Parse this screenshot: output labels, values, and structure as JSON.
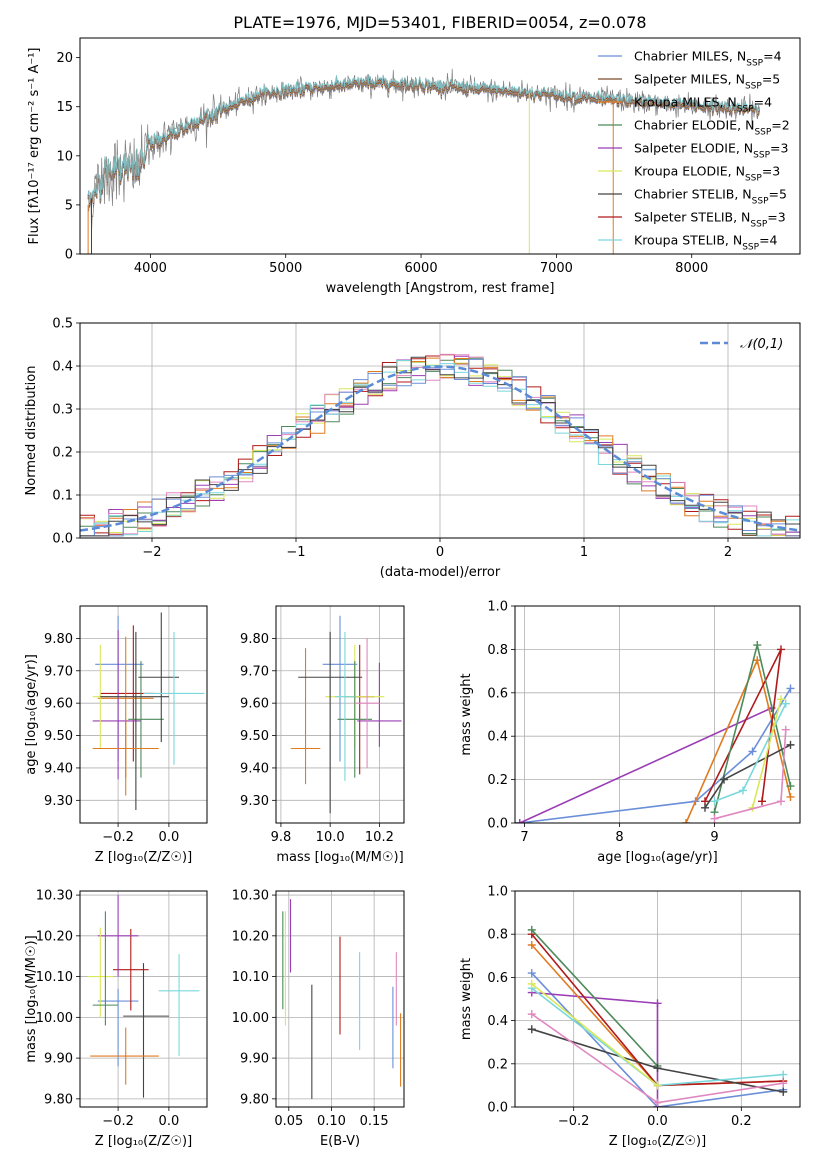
{
  "title": "PLATE=1976, MJD=53401, FIBERID=0054, z=0.078",
  "chart_data": [
    {
      "id": "spectrum",
      "type": "line",
      "xlabel": "wavelength [Angstrom, rest frame]",
      "ylabel": "Flux [fλ10⁻¹⁷ erg cm⁻² s⁻¹ A⁻¹]",
      "xlim": [
        3480,
        8800
      ],
      "ylim": [
        0,
        22
      ],
      "xticks": [
        4000,
        5000,
        6000,
        7000,
        8000
      ],
      "yticks": [
        0,
        5,
        10,
        15,
        20
      ],
      "grid": false,
      "legend_position": "right",
      "continuum_knots": {
        "x": [
          3540,
          3650,
          3800,
          3900,
          4000,
          4200,
          4500,
          4800,
          5000,
          5300,
          5600,
          6000,
          6400,
          6800,
          7200,
          7600,
          8000,
          8400,
          8500
        ],
        "y": [
          5,
          8,
          9,
          8.5,
          11,
          12.5,
          14.5,
          16.2,
          16.6,
          17,
          17.4,
          17.2,
          16.8,
          16.4,
          15.9,
          15.5,
          15.1,
          14.8,
          14.6
        ]
      },
      "series": [
        {
          "name": "Chabrier MILES, N_SSP=4",
          "color": "#6a8fd8"
        },
        {
          "name": "Salpeter MILES, N_SSP=5",
          "color": "#7b4a2a"
        },
        {
          "name": "Kroupa MILES, N_SSP=4",
          "color": "#e07b20"
        },
        {
          "name": "Chabrier ELODIE, N_SSP=2",
          "color": "#4e8a5a"
        },
        {
          "name": "Salpeter ELODIE, N_SSP=3",
          "color": "#9b3db5"
        },
        {
          "name": "Kroupa ELODIE, N_SSP=3",
          "color": "#d9e85a"
        },
        {
          "name": "Chabrier STELIB, N_SSP=5",
          "color": "#444444"
        },
        {
          "name": "Salpeter STELIB, N_SSP=3",
          "color": "#b01a1a"
        },
        {
          "name": "Kroupa STELIB, N_SSP=4",
          "color": "#7ad8dc"
        }
      ]
    },
    {
      "id": "residuals",
      "type": "histogram",
      "xlabel": "(data-model)/error",
      "ylabel": "Normed distribution",
      "xlim": [
        -2.5,
        2.5
      ],
      "ylim": [
        0,
        0.5
      ],
      "xticks": [
        -2,
        -1,
        0,
        1,
        2
      ],
      "yticks": [
        0,
        0.1,
        0.2,
        0.3,
        0.4,
        0.5
      ],
      "grid": true,
      "bin_width": 0.1,
      "legend": "𝒩(0,1)",
      "legend_position": "top-right",
      "normal_curve_color": "#5b8bd6",
      "hist_colors": [
        "#4e8a5a",
        "#b01a1a",
        "#9b3db5",
        "#d9e85a",
        "#e07b20",
        "#e088c0",
        "#7ad8dc",
        "#6a8fd8",
        "#444444"
      ]
    },
    {
      "id": "age-vs-Z",
      "type": "errorbar",
      "xlabel": "Z [log₁₀(Z/Z☉)]",
      "ylabel": "age  [log₁₀(age/yr)]",
      "xlim": [
        -0.35,
        0.15
      ],
      "ylim": [
        9.23,
        9.9
      ],
      "xticks": [
        -0.2,
        0.0
      ],
      "yticks": [
        9.3,
        9.4,
        9.5,
        9.6,
        9.7,
        9.8
      ],
      "grid": true,
      "points": [
        {
          "x": -0.2,
          "xerr": [
            0.09,
            0.1
          ],
          "y": 9.72,
          "yerr": [
            0.3,
            0.15
          ],
          "color": "#6a8fd8"
        },
        {
          "x": -0.14,
          "xerr": [
            0.13,
            0.08
          ],
          "y": 9.63,
          "yerr": [
            0.21,
            0.21
          ],
          "color": "#b01a1a"
        },
        {
          "x": -0.17,
          "xerr": [
            0.11,
            0.11
          ],
          "y": 9.615,
          "yerr": [
            0.3,
            0.19
          ],
          "color": "#e07b20"
        },
        {
          "x": -0.2,
          "xerr": [
            0.1,
            0.09
          ],
          "y": 9.545,
          "yerr": [
            0.18,
            0.28
          ],
          "color": "#9b3db5"
        },
        {
          "x": -0.27,
          "xerr": [
            0.03,
            0.03
          ],
          "y": 9.62,
          "yerr": [
            0.16,
            0.16
          ],
          "color": "#d9e85a"
        },
        {
          "x": -0.11,
          "xerr": [
            0.05,
            0.09
          ],
          "y": 9.55,
          "yerr": [
            0.18,
            0.18
          ],
          "color": "#4e8a5a"
        },
        {
          "x": -0.13,
          "xerr": [
            0.14,
            0.13
          ],
          "y": 9.62,
          "yerr": [
            0.35,
            0.2
          ],
          "color": "#444444"
        },
        {
          "x": -0.03,
          "xerr": [
            0.09,
            0.07
          ],
          "y": 9.68,
          "yerr": [
            0.2,
            0.2
          ],
          "color": "#444444"
        },
        {
          "x": 0.02,
          "xerr": [
            0.12,
            0.12
          ],
          "y": 9.63,
          "yerr": [
            0.22,
            0.19
          ],
          "color": "#7ad8dc"
        },
        {
          "x": -0.17,
          "xerr": [
            0.13,
            0.13
          ],
          "y": 9.46,
          "yerr": [
            0.09,
            0.09
          ],
          "color": "#e07b20"
        }
      ]
    },
    {
      "id": "age-vs-mass",
      "type": "errorbar",
      "xlabel": "mass [log₁₀(M/M☉)]",
      "ylabel": "",
      "xlim": [
        9.78,
        10.3
      ],
      "ylim": [
        9.23,
        9.9
      ],
      "xticks": [
        9.8,
        10.0,
        10.2
      ],
      "yticks": [
        9.3,
        9.4,
        9.5,
        9.6,
        9.7,
        9.8
      ],
      "grid": true,
      "points": [
        {
          "x": 10.04,
          "xerr": [
            0.07,
            0.07
          ],
          "y": 9.72,
          "yerr": [
            0.3,
            0.15
          ],
          "color": "#6a8fd8"
        },
        {
          "x": 10.12,
          "xerr": [
            0.06,
            0.06
          ],
          "y": 9.62,
          "yerr": [
            0.24,
            0.16
          ],
          "color": "#b01a1a"
        },
        {
          "x": 9.9,
          "xerr": [
            0.06,
            0.06
          ],
          "y": 9.46,
          "yerr": [
            0.11,
            0.31
          ],
          "color": "#e07b20"
        },
        {
          "x": 10.2,
          "xerr": [
            0.09,
            0.09
          ],
          "y": 9.545,
          "yerr": [
            0.08,
            0.18
          ],
          "color": "#9b3db5"
        },
        {
          "x": 10.1,
          "xerr": [
            0.12,
            0.12
          ],
          "y": 9.62,
          "yerr": [
            0.16,
            0.16
          ],
          "color": "#d9e85a"
        },
        {
          "x": 10.1,
          "xerr": [
            0.07,
            0.07
          ],
          "y": 9.55,
          "yerr": [
            0.18,
            0.18
          ],
          "color": "#4e8a5a"
        },
        {
          "x": 10.0,
          "xerr": [
            0.13,
            0.13
          ],
          "y": 9.68,
          "yerr": [
            0.42,
            0.14
          ],
          "color": "#444444"
        },
        {
          "x": 10.06,
          "xerr": [
            0.04,
            0.04
          ],
          "y": 9.62,
          "yerr": [
            0.26,
            0.2
          ],
          "color": "#7ad8dc"
        },
        {
          "x": 10.15,
          "xerr": [
            0.05,
            0.05
          ],
          "y": 9.6,
          "yerr": [
            0.2,
            0.2
          ],
          "color": "#e088c0"
        }
      ]
    },
    {
      "id": "mass-weight-vs-age",
      "type": "line",
      "xlabel": "age  [log₁₀(age/yr)]",
      "ylabel": "mass weight",
      "xlim": [
        6.9,
        9.9
      ],
      "ylim": [
        0,
        1.0
      ],
      "xticks": [
        7,
        8,
        9
      ],
      "yticks": [
        0.0,
        0.2,
        0.4,
        0.6,
        0.8,
        1.0
      ],
      "grid": true,
      "series": [
        {
          "color": "#6a8fd8",
          "x": [
            6.95,
            8.8,
            9.4,
            9.8
          ],
          "y": [
            0.0,
            0.1,
            0.33,
            0.62
          ]
        },
        {
          "color": "#9b3db5",
          "x": [
            6.95,
            9.6
          ],
          "y": [
            0.0,
            0.53
          ]
        },
        {
          "color": "#e07b20",
          "x": [
            8.7,
            9.45,
            9.8
          ],
          "y": [
            0.0,
            0.75,
            0.12
          ]
        },
        {
          "color": "#b01a1a",
          "x": [
            8.9,
            9.7,
            9.5
          ],
          "y": [
            0.1,
            0.8,
            0.1
          ]
        },
        {
          "color": "#4e8a5a",
          "x": [
            9.0,
            9.45,
            9.8
          ],
          "y": [
            0.05,
            0.82,
            0.17
          ]
        },
        {
          "color": "#444444",
          "x": [
            8.9,
            9.1,
            9.8
          ],
          "y": [
            0.07,
            0.2,
            0.36
          ]
        },
        {
          "color": "#7ad8dc",
          "x": [
            9.0,
            9.3,
            9.75
          ],
          "y": [
            0.1,
            0.15,
            0.55
          ]
        },
        {
          "color": "#d9e85a",
          "x": [
            9.4,
            9.7
          ],
          "y": [
            0.07,
            0.57
          ]
        },
        {
          "color": "#e088c0",
          "x": [
            9.0,
            9.7,
            9.75
          ],
          "y": [
            0.02,
            0.1,
            0.43
          ]
        }
      ]
    },
    {
      "id": "mass-vs-Z",
      "type": "errorbar",
      "xlabel": "Z [log₁₀(Z/Z☉)]",
      "ylabel": "mass [log₁₀(M/M☉)]",
      "xlim": [
        -0.35,
        0.15
      ],
      "ylim": [
        9.78,
        10.31
      ],
      "xticks": [
        -0.2,
        0.0
      ],
      "yticks": [
        9.8,
        9.9,
        10.0,
        10.1,
        10.2,
        10.3
      ],
      "grid": true,
      "points": [
        {
          "x": -0.2,
          "xerr": [
            0.08,
            0.08
          ],
          "y": 10.04,
          "yerr": [
            0.16,
            0.03
          ],
          "color": "#6a8fd8"
        },
        {
          "x": -0.15,
          "xerr": [
            0.07,
            0.07
          ],
          "y": 10.117,
          "yerr": [
            0.1,
            0.1
          ],
          "color": "#b01a1a"
        },
        {
          "x": -0.2,
          "xerr": [
            0.08,
            0.08
          ],
          "y": 10.2,
          "yerr": [
            0.1,
            0.1
          ],
          "color": "#9b3db5"
        },
        {
          "x": -0.27,
          "xerr": [
            0.05,
            0.05
          ],
          "y": 10.1,
          "yerr": [
            0.1,
            0.12
          ],
          "color": "#d9e85a"
        },
        {
          "x": -0.25,
          "xerr": [
            0.05,
            0.05
          ],
          "y": 10.03,
          "yerr": [
            0.05,
            0.23
          ],
          "color": "#4e8a5a"
        },
        {
          "x": -0.1,
          "xerr": [
            0.08,
            0.1
          ],
          "y": 10.003,
          "yerr": [
            0.2,
            0.13
          ],
          "color": "#444444"
        },
        {
          "x": 0.04,
          "xerr": [
            0.08,
            0.08
          ],
          "y": 10.065,
          "yerr": [
            0.16,
            0.09
          ],
          "color": "#7ad8dc"
        },
        {
          "x": -0.17,
          "xerr": [
            0.14,
            0.13
          ],
          "y": 9.905,
          "yerr": [
            0.07,
            0.07
          ],
          "color": "#e07b20"
        }
      ]
    },
    {
      "id": "mass-vs-ebv",
      "type": "errorbar",
      "xlabel": "E(B-V)",
      "ylabel": "",
      "xlim": [
        0.035,
        0.185
      ],
      "ylim": [
        9.78,
        10.31
      ],
      "xticks": [
        0.05,
        0.1,
        0.15
      ],
      "yticks": [
        9.8,
        9.9,
        10.0,
        10.1,
        10.2,
        10.3
      ],
      "grid": true,
      "points": [
        {
          "x": 0.046,
          "y": 10.11,
          "yerr": [
            0.13,
            0.15
          ],
          "color": "#d9e85a"
        },
        {
          "x": 0.052,
          "y": 10.2,
          "yerr": [
            0.09,
            0.09
          ],
          "color": "#9b3db5"
        },
        {
          "x": 0.043,
          "y": 10.1,
          "yerr": [
            0.08,
            0.16
          ],
          "color": "#4e8a5a"
        },
        {
          "x": 0.077,
          "y": 9.94,
          "yerr": [
            0.14,
            0.14
          ],
          "color": "#444444"
        },
        {
          "x": 0.11,
          "y": 10.078,
          "yerr": [
            0.12,
            0.12
          ],
          "color": "#b01a1a"
        },
        {
          "x": 0.133,
          "y": 10.04,
          "yerr": [
            0.12,
            0.12
          ],
          "color": "#7ad8dc"
        },
        {
          "x": 0.172,
          "y": 9.975,
          "yerr": [
            0.1,
            0.1
          ],
          "color": "#6a8fd8"
        },
        {
          "x": 0.176,
          "y": 10.07,
          "yerr": [
            0.09,
            0.09
          ],
          "color": "#e088c0"
        },
        {
          "x": 0.181,
          "y": 9.92,
          "yerr": [
            0.09,
            0.09
          ],
          "color": "#e07b20"
        }
      ]
    },
    {
      "id": "mass-weight-vs-Z",
      "type": "line",
      "xlabel": "Z [log₁₀(Z/Z☉)]",
      "ylabel": "mass weight",
      "xlim": [
        -0.34,
        0.34
      ],
      "ylim": [
        0,
        1.0
      ],
      "xticks": [
        -0.2,
        0.0,
        0.2
      ],
      "yticks": [
        0.0,
        0.2,
        0.4,
        0.6,
        0.8,
        1.0
      ],
      "grid": true,
      "series": [
        {
          "color": "#6a8fd8",
          "x": [
            -0.3,
            0.0,
            0.3
          ],
          "y": [
            0.62,
            0.0,
            0.08
          ]
        },
        {
          "color": "#9b3db5",
          "x": [
            -0.3,
            0.0,
            0.0
          ],
          "y": [
            0.53,
            0.48,
            0.0
          ]
        },
        {
          "color": "#e07b20",
          "x": [
            -0.3,
            0.0,
            0.3
          ],
          "y": [
            0.75,
            0.1,
            0.12
          ]
        },
        {
          "color": "#b01a1a",
          "x": [
            -0.3,
            0.0,
            0.3
          ],
          "y": [
            0.8,
            0.1,
            0.12
          ]
        },
        {
          "color": "#4e8a5a",
          "x": [
            -0.3,
            0.0
          ],
          "y": [
            0.82,
            0.19
          ]
        },
        {
          "color": "#444444",
          "x": [
            -0.3,
            0.0,
            0.3
          ],
          "y": [
            0.36,
            0.18,
            0.07
          ]
        },
        {
          "color": "#7ad8dc",
          "x": [
            -0.3,
            0.0,
            0.3
          ],
          "y": [
            0.55,
            0.1,
            0.15
          ]
        },
        {
          "color": "#d9e85a",
          "x": [
            -0.3,
            0.0
          ],
          "y": [
            0.57,
            0.1
          ]
        },
        {
          "color": "#e088c0",
          "x": [
            -0.3,
            0.0,
            0.3
          ],
          "y": [
            0.43,
            0.02,
            0.11
          ]
        }
      ]
    }
  ]
}
